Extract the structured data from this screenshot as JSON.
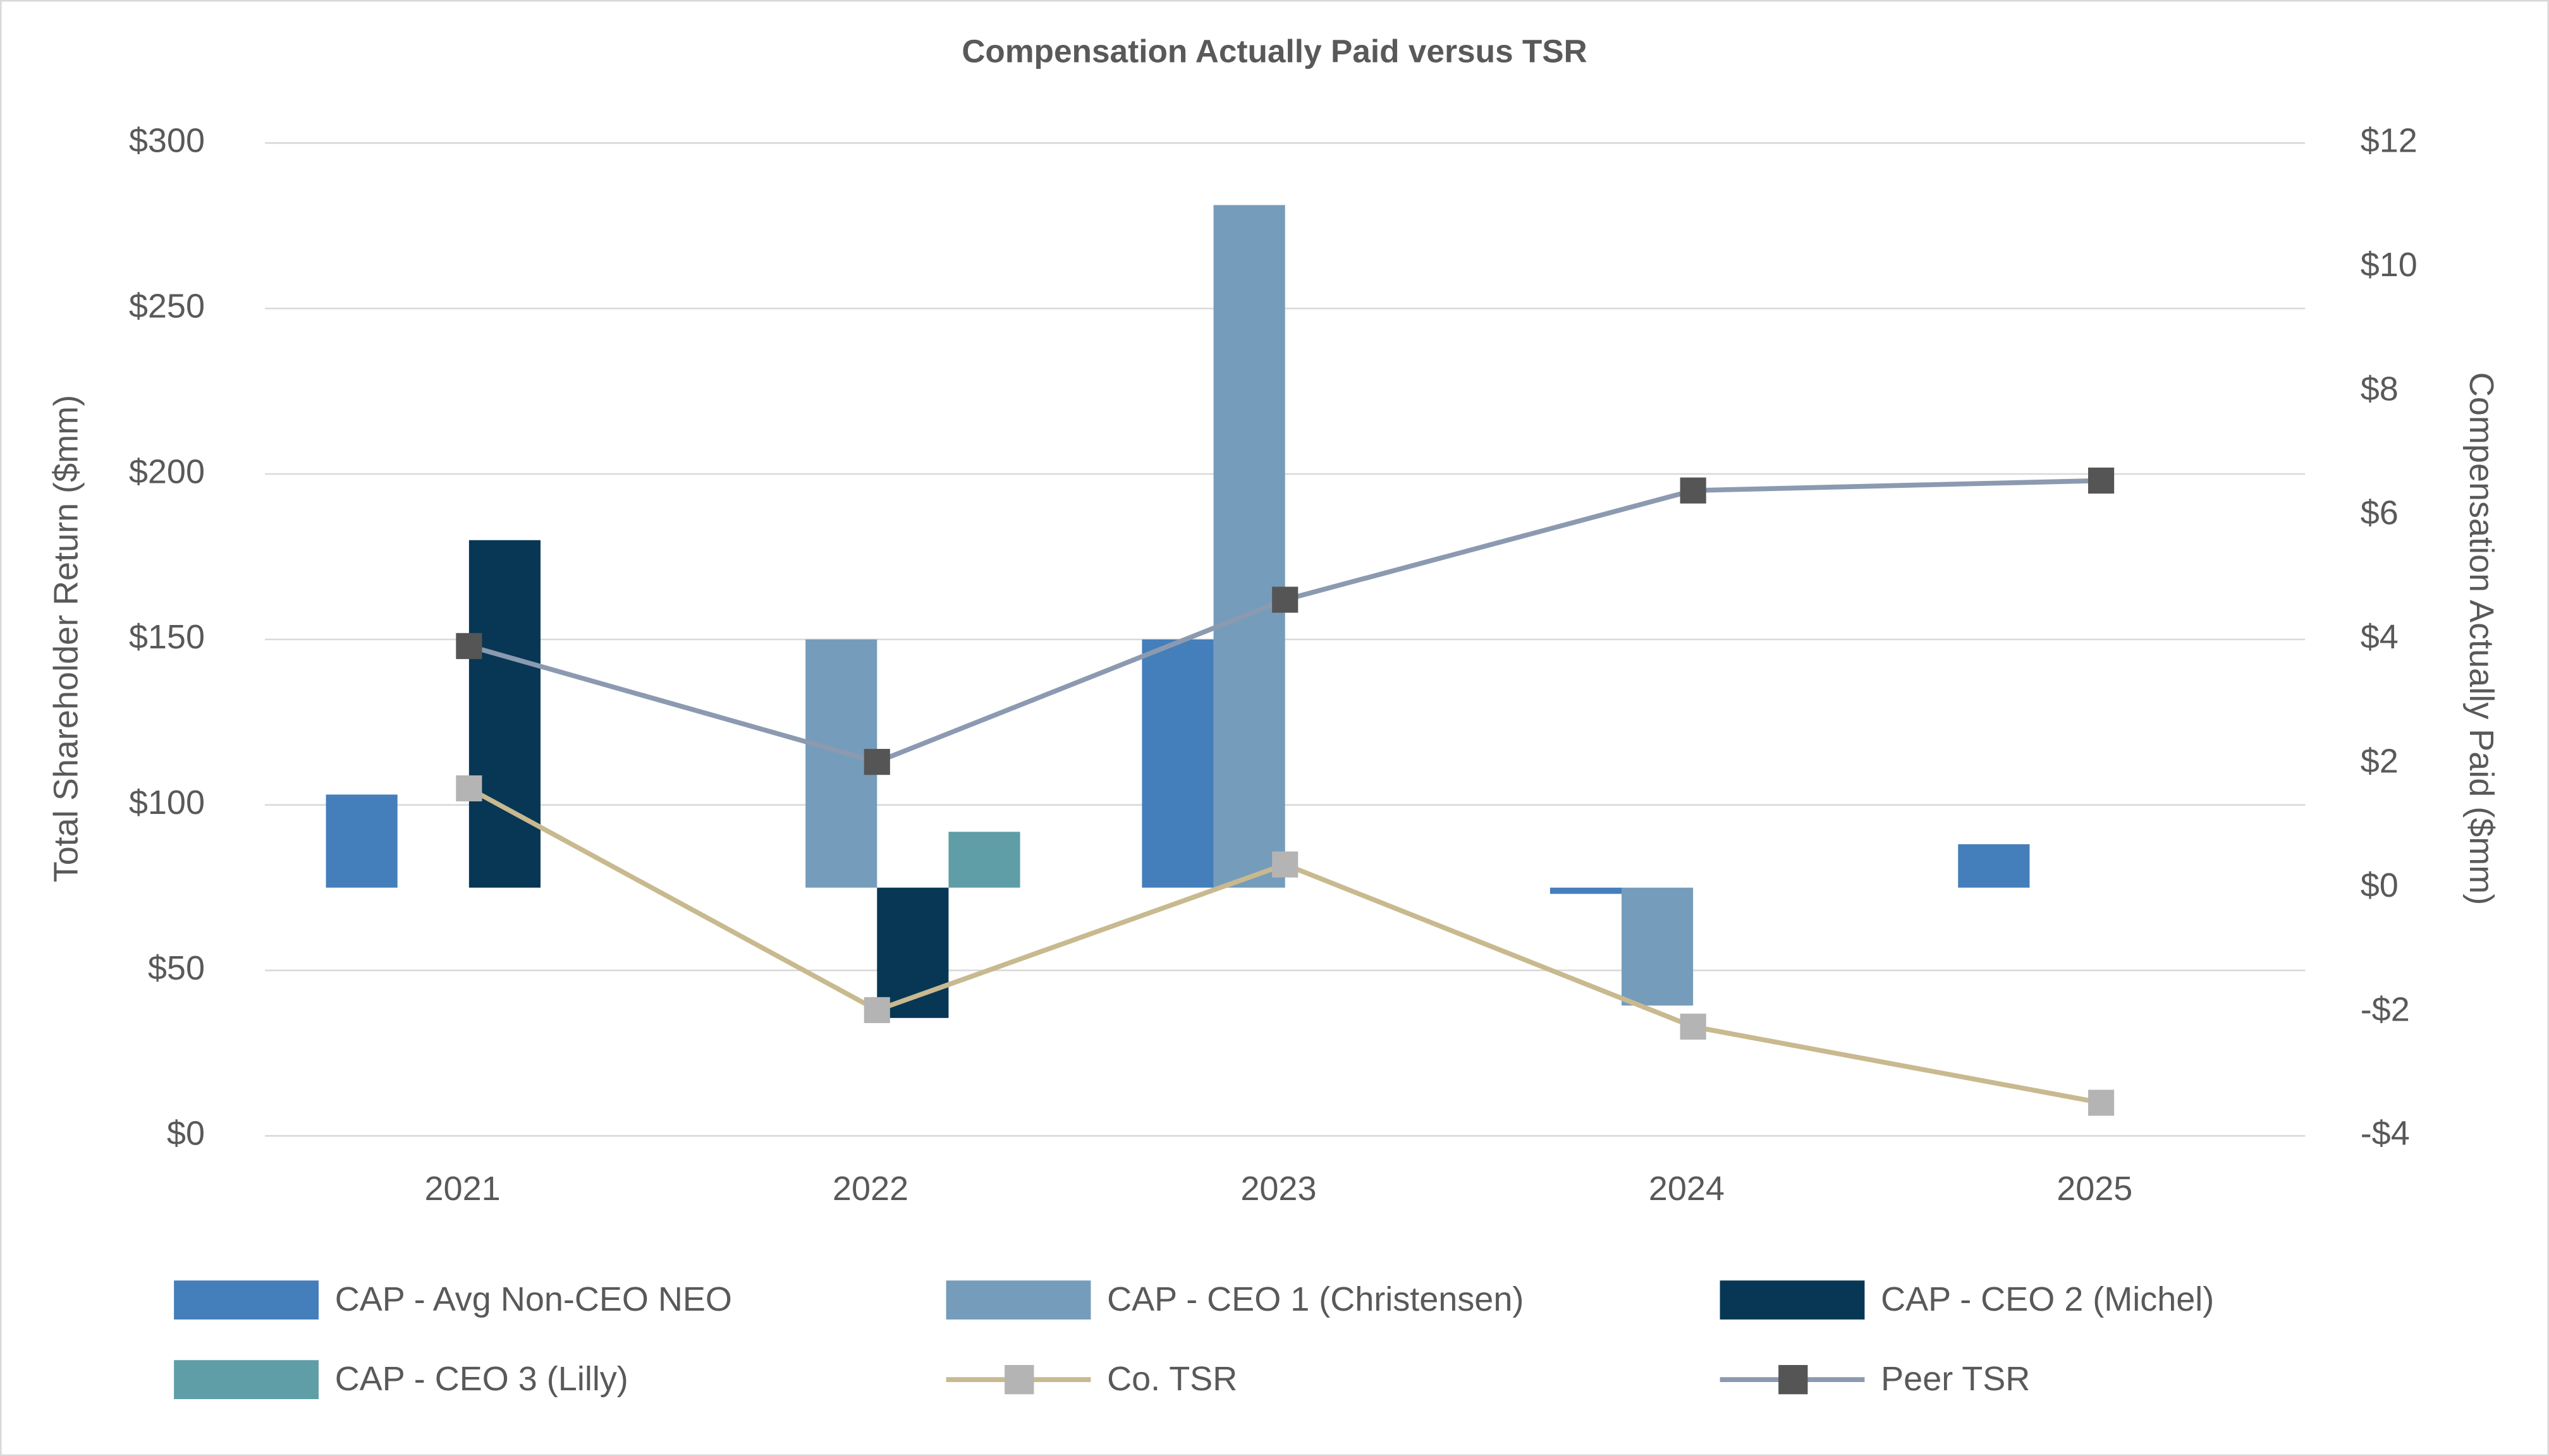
{
  "chart_data": {
    "type": "bar_line",
    "title": "Compensation Actually Paid versus TSR",
    "y_label": "Total Shareholder Return ($mm)",
    "y2_label": "Compensation Actually Paid ($mm)",
    "categories": [
      "2021",
      "2022",
      "2023",
      "2024",
      "2025"
    ],
    "ylim": [
      0,
      300
    ],
    "yticks": [
      {
        "value": 0,
        "label": "$0"
      },
      {
        "value": 50,
        "label": "$50"
      },
      {
        "value": 100,
        "label": "$100"
      },
      {
        "value": 150,
        "label": "$150"
      },
      {
        "value": 200,
        "label": "$200"
      },
      {
        "value": 250,
        "label": "$250"
      },
      {
        "value": 300,
        "label": "$300"
      }
    ],
    "y2lim": [
      -4,
      12
    ],
    "y2ticks": [
      {
        "value": -4,
        "label": "-$4"
      },
      {
        "value": -2,
        "label": "-$2"
      },
      {
        "value": 0,
        "label": "$0"
      },
      {
        "value": 2,
        "label": "$2"
      },
      {
        "value": 4,
        "label": "$4"
      },
      {
        "value": 6,
        "label": "$6"
      },
      {
        "value": 8,
        "label": "$8"
      },
      {
        "value": 10,
        "label": "$10"
      },
      {
        "value": 12,
        "label": "$12"
      }
    ],
    "grid": true,
    "legend": "bottom",
    "series": [
      {
        "name": "CAP - Avg Non-CEO NEO",
        "type": "bar",
        "axis": "y2",
        "color": "#447ebb",
        "values": [
          1.5,
          null,
          4.0,
          -0.1,
          0.7
        ]
      },
      {
        "name": "CAP - CEO 1 (Christensen)",
        "type": "bar",
        "axis": "y2",
        "color": "#759cbb",
        "values": [
          null,
          4.0,
          11.0,
          -1.9,
          null
        ]
      },
      {
        "name": "CAP - CEO 2 (Michel)",
        "type": "bar",
        "axis": "y2",
        "color": "#073754",
        "values": [
          5.6,
          -2.1,
          null,
          null,
          null
        ]
      },
      {
        "name": "CAP - CEO 3 (Lilly)",
        "type": "bar",
        "axis": "y2",
        "color": "#5f9ea6",
        "values": [
          null,
          0.9,
          null,
          null,
          null
        ]
      },
      {
        "name": "Co. TSR",
        "type": "line",
        "color": "#c8b98f",
        "marker_color": "#b4b4b4",
        "values": [
          105,
          38,
          82,
          33,
          10
        ]
      },
      {
        "name": "Peer TSR",
        "type": "line",
        "color": "#8b9ab0",
        "marker_color": "#555555",
        "values": [
          148,
          113,
          162,
          195,
          198
        ]
      }
    ]
  }
}
